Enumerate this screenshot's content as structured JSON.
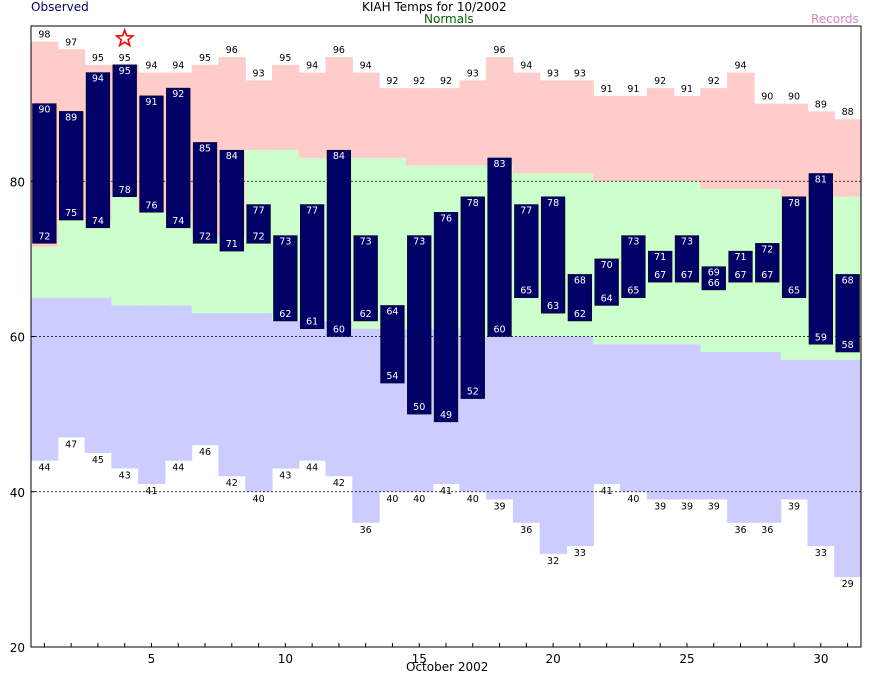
{
  "chart_data": {
    "type": "bar",
    "title": "KIAH Temps for 10/2002",
    "legend": {
      "observed": "Observed",
      "normals": "Normals",
      "records": "Records"
    },
    "xlabel": "October 2002",
    "xlim": [
      1,
      31
    ],
    "xticks": [
      5,
      10,
      15,
      20,
      25,
      30
    ],
    "ylim": [
      20,
      100
    ],
    "yticks": [
      20,
      40,
      60,
      80
    ],
    "grid_y": [
      40,
      60,
      80
    ],
    "days": [
      1,
      2,
      3,
      4,
      5,
      6,
      7,
      8,
      9,
      10,
      11,
      12,
      13,
      14,
      15,
      16,
      17,
      18,
      19,
      20,
      21,
      22,
      23,
      24,
      25,
      26,
      27,
      28,
      29,
      30,
      31
    ],
    "series": [
      {
        "name": "Observed",
        "role": "observed_high",
        "values": [
          90,
          89,
          94,
          95,
          91,
          92,
          85,
          84,
          77,
          73,
          77,
          84,
          73,
          64,
          73,
          76,
          78,
          83,
          77,
          78,
          68,
          70,
          73,
          71,
          73,
          69,
          71,
          72,
          78,
          81,
          68
        ]
      },
      {
        "name": "Observed",
        "role": "observed_low",
        "values": [
          72,
          75,
          74,
          78,
          76,
          74,
          72,
          71,
          72,
          62,
          61,
          60,
          62,
          54,
          50,
          49,
          52,
          60,
          65,
          63,
          62,
          64,
          65,
          67,
          67,
          66,
          67,
          67,
          65,
          59,
          58
        ]
      },
      {
        "name": "Records",
        "role": "record_high",
        "values": [
          98,
          97,
          95,
          95,
          94,
          94,
          95,
          96,
          93,
          95,
          94,
          96,
          94,
          92,
          92,
          92,
          93,
          96,
          94,
          93,
          93,
          91,
          91,
          92,
          91,
          92,
          94,
          90,
          90,
          89,
          88
        ]
      },
      {
        "name": "Records",
        "role": "record_low",
        "values": [
          44,
          47,
          45,
          43,
          41,
          44,
          46,
          42,
          40,
          43,
          44,
          42,
          36,
          40,
          40,
          41,
          40,
          39,
          36,
          32,
          33,
          41,
          40,
          39,
          39,
          39,
          36,
          36,
          39,
          33,
          29
        ]
      },
      {
        "name": "Normals",
        "role": "normal_high",
        "values": [
          null,
          null,
          null,
          null,
          null,
          null,
          null,
          null,
          null,
          null,
          null,
          null,
          null,
          null,
          null,
          null,
          null,
          null,
          null,
          null,
          null,
          null,
          null,
          null,
          null,
          null,
          null,
          null,
          null,
          null,
          null
        ]
      },
      {
        "name": "Normals",
        "role": "normal_low",
        "values": [
          null,
          null,
          null,
          null,
          null,
          null,
          null,
          null,
          null,
          null,
          null,
          null,
          null,
          null,
          null,
          null,
          null,
          null,
          null,
          null,
          null,
          null,
          null,
          null,
          null,
          null,
          null,
          null,
          null,
          null,
          null
        ]
      }
    ],
    "normal_band_high": [
      72,
      72,
      72,
      72,
      72,
      72,
      72,
      72,
      72,
      72,
      72,
      72,
      72,
      72,
      72,
      72,
      72,
      72,
      72,
      72,
      72,
      72,
      72,
      72,
      72,
      72,
      72,
      72,
      72,
      72,
      72
    ],
    "normal_high": [
      71.5,
      75,
      75,
      78,
      76,
      76,
      73,
      73,
      84,
      84,
      83,
      83,
      83,
      83,
      82,
      82,
      82,
      82,
      81,
      81,
      81,
      80,
      80,
      80,
      80,
      79,
      79,
      79,
      78,
      78,
      78
    ],
    "normal_low": [
      65,
      65,
      65,
      64,
      64,
      64,
      63,
      63,
      63,
      62,
      62,
      62,
      61,
      61,
      61,
      61,
      60,
      60,
      60,
      60,
      60,
      59,
      59,
      59,
      59,
      58,
      58,
      58,
      57,
      57,
      57
    ],
    "record_high_extended": [
      98,
      97,
      95,
      95,
      94,
      94,
      95,
      96,
      93,
      95,
      94,
      96,
      94,
      92,
      92,
      92,
      93,
      96,
      94,
      93,
      93,
      91,
      91,
      92,
      91,
      92,
      94,
      90,
      90,
      89,
      88
    ],
    "annotations": [
      {
        "type": "star",
        "day": 4,
        "value": 98.5,
        "meaning": "record high tied"
      }
    ],
    "colors": {
      "observed": "#000066",
      "record_high_band": "#ffcccc",
      "normal_band": "#ccffcc",
      "record_low_band": "#ccccff",
      "observed_title": "#000066",
      "normals_title": "#006600",
      "records_title": "#cc88cc",
      "star": "#ff0000",
      "grid": "#000000"
    }
  }
}
